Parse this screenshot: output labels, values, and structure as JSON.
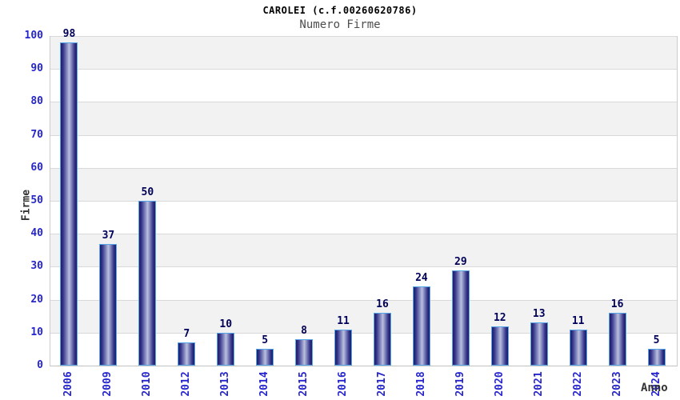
{
  "chart_data": {
    "type": "bar",
    "title": "CAROLEI (c.f.00260620786)",
    "subtitle": "Numero Firme",
    "xlabel": "Anno",
    "ylabel": "Firme",
    "categories": [
      "2006",
      "2009",
      "2010",
      "2012",
      "2013",
      "2014",
      "2015",
      "2016",
      "2017",
      "2018",
      "2019",
      "2020",
      "2021",
      "2022",
      "2023",
      "2024"
    ],
    "values": [
      98,
      37,
      50,
      7,
      10,
      5,
      8,
      11,
      16,
      24,
      29,
      12,
      13,
      11,
      16,
      5
    ],
    "ylim": [
      0,
      100
    ],
    "yticks": [
      0,
      10,
      20,
      30,
      40,
      50,
      60,
      70,
      80,
      90,
      100
    ],
    "grid": "horizontal bands, alternating gray/white every 10 units, gray at top",
    "legend": "none",
    "bar_value_labels": true
  },
  "colors": {
    "tick_label": "#2626cc",
    "value_label": "#000059",
    "axis_label": "#333333",
    "subtitle_color": "#4d4d4d",
    "band_gray": "#f2f2f2",
    "gridline_color": "#d9d9d9",
    "bar_border": "#57a7e8",
    "bar_edge": "#1d1d66",
    "bar_mid": "#bcc0de"
  }
}
